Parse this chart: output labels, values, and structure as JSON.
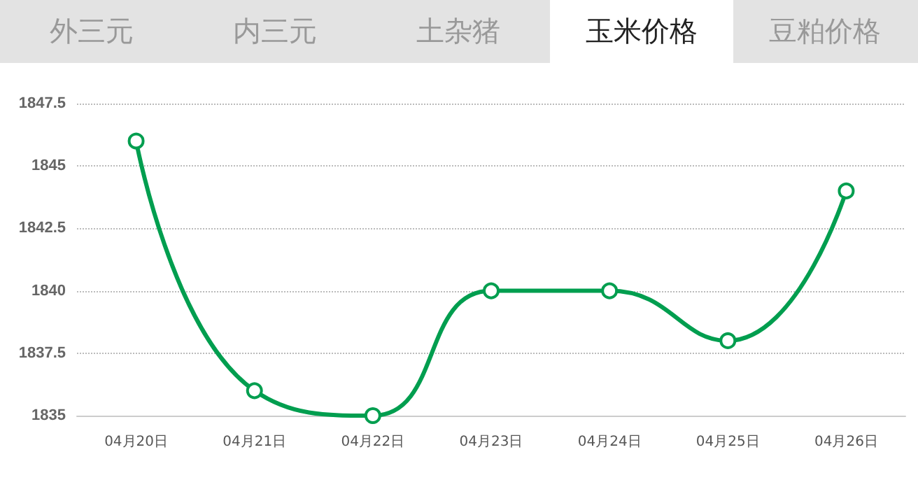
{
  "chart_data": {
    "type": "line",
    "title": "玉米价格",
    "annotations": [
      "外三元",
      "内三元",
      "土杂猪",
      "豆粕价格"
    ],
    "categories": [
      "04月20日",
      "04月21日",
      "04月22日",
      "04月23日",
      "04月24日",
      "04月25日",
      "04月26日"
    ],
    "series": [
      {
        "color": "#009e4f",
        "values": [
          1846,
          1836,
          1835,
          1840,
          1840,
          1838,
          1844
        ]
      }
    ],
    "ylim": [
      1835,
      1847.5
    ],
    "yticks": [
      1835,
      1837.5,
      1840,
      1842.5,
      1845,
      1847.5
    ],
    "grid": "y",
    "marker": "circle",
    "line_style": "solid"
  }
}
